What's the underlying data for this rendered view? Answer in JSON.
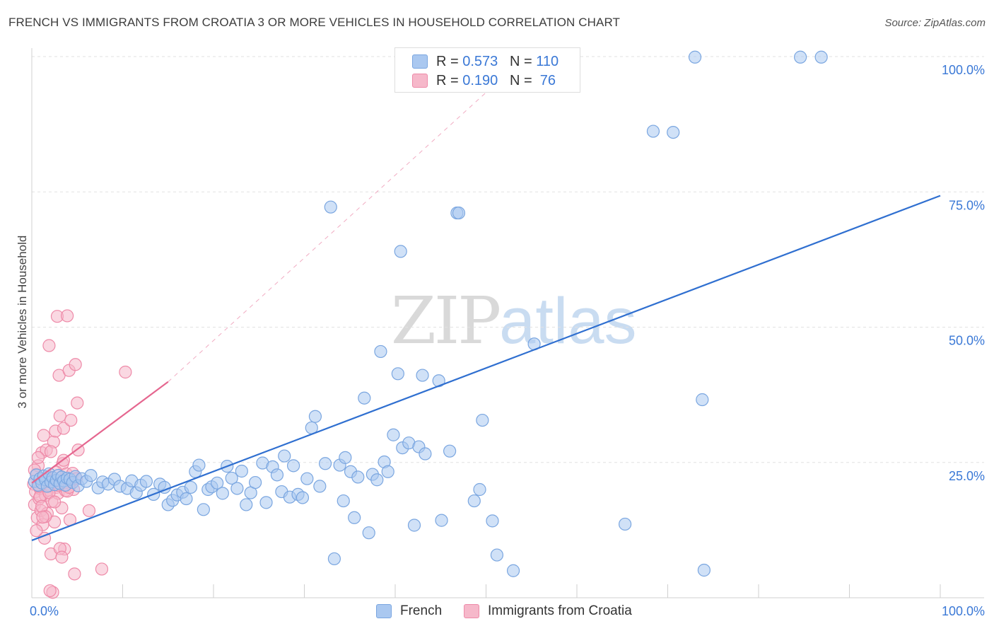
{
  "header": {
    "title": "FRENCH VS IMMIGRANTS FROM CROATIA 3 OR MORE VEHICLES IN HOUSEHOLD CORRELATION CHART",
    "source": "Source: ZipAtlas.com"
  },
  "watermark": {
    "zip": "ZIP",
    "atlas": "atlas"
  },
  "legend_top": {
    "rows": [
      {
        "r_label": "R = ",
        "r_value": "0.573",
        "n_label": "N = ",
        "n_value": "110",
        "color": "#aac8f0"
      },
      {
        "r_label": "R = ",
        "r_value": "0.190",
        "n_label": "N = ",
        "n_value": " 76",
        "color": "#f6b8ca"
      }
    ]
  },
  "legend_bottom": {
    "items": [
      {
        "label": "French",
        "color": "#aac8f0"
      },
      {
        "label": "Immigrants from Croatia",
        "color": "#f6b8ca"
      }
    ]
  },
  "chart_data": {
    "type": "scatter",
    "ylabel": "3 or more Vehicles in Household",
    "xlim": [
      0,
      100
    ],
    "ylim": [
      0,
      100
    ],
    "x_tick_labels": [
      {
        "value": 0,
        "label": "0.0%"
      },
      {
        "value": 100,
        "label": "100.0%"
      }
    ],
    "y_tick_labels": [
      {
        "value": 25,
        "label": "25.0%"
      },
      {
        "value": 50,
        "label": "50.0%"
      },
      {
        "value": 75,
        "label": "75.0%"
      },
      {
        "value": 100,
        "label": "100.0%"
      }
    ],
    "x_minor_ticks": [
      0,
      10,
      20,
      30,
      40,
      50,
      60,
      70,
      80,
      90,
      100
    ],
    "grid": {
      "horizontal": true,
      "vertical": false,
      "style": "dashed"
    },
    "legend_position": "top-center",
    "colors": {
      "french_fill": "#aac8f0",
      "french_stroke": "#7aa6e0",
      "french_line": "#2f6fd0",
      "croatia_fill": "#f6b8ca",
      "croatia_stroke": "#ee8aa8",
      "croatia_line": "#e5668f"
    },
    "series": [
      {
        "name": "French",
        "points": [
          [
            0.3,
            21.5
          ],
          [
            0.5,
            22.7
          ],
          [
            0.7,
            20.8
          ],
          [
            0.9,
            22.0
          ],
          [
            1.1,
            21.2
          ],
          [
            1.3,
            22.5
          ],
          [
            1.5,
            21.8
          ],
          [
            1.7,
            20.6
          ],
          [
            1.9,
            22.9
          ],
          [
            2.1,
            21.4
          ],
          [
            2.3,
            22.2
          ],
          [
            2.5,
            20.9
          ],
          [
            2.7,
            21.7
          ],
          [
            2.9,
            22.6
          ],
          [
            3.1,
            21.1
          ],
          [
            3.3,
            22.3
          ],
          [
            3.5,
            21.6
          ],
          [
            3.7,
            20.8
          ],
          [
            3.9,
            22.1
          ],
          [
            4.2,
            21.9
          ],
          [
            4.5,
            21.3
          ],
          [
            4.8,
            22.4
          ],
          [
            5.1,
            20.7
          ],
          [
            5.5,
            22.0
          ],
          [
            6.0,
            21.5
          ],
          [
            6.5,
            22.6
          ],
          [
            7.3,
            20.3
          ],
          [
            7.8,
            21.4
          ],
          [
            8.4,
            21.0
          ],
          [
            9.1,
            21.9
          ],
          [
            9.7,
            20.6
          ],
          [
            10.5,
            20.2
          ],
          [
            11.0,
            21.6
          ],
          [
            11.5,
            19.4
          ],
          [
            12.0,
            20.8
          ],
          [
            12.6,
            21.5
          ],
          [
            13.4,
            19.1
          ],
          [
            14.1,
            21.0
          ],
          [
            14.6,
            20.4
          ],
          [
            15.0,
            17.2
          ],
          [
            15.5,
            18.0
          ],
          [
            16.0,
            19.0
          ],
          [
            16.6,
            19.5
          ],
          [
            17.0,
            18.3
          ],
          [
            17.5,
            20.4
          ],
          [
            18.0,
            23.3
          ],
          [
            18.4,
            24.5
          ],
          [
            18.9,
            16.3
          ],
          [
            19.4,
            20.0
          ],
          [
            19.8,
            20.5
          ],
          [
            20.4,
            21.2
          ],
          [
            21.0,
            19.3
          ],
          [
            21.5,
            24.3
          ],
          [
            22.0,
            22.1
          ],
          [
            22.6,
            20.2
          ],
          [
            23.1,
            23.4
          ],
          [
            23.6,
            17.2
          ],
          [
            24.1,
            19.4
          ],
          [
            24.6,
            21.3
          ],
          [
            25.4,
            24.9
          ],
          [
            25.8,
            17.6
          ],
          [
            26.5,
            24.2
          ],
          [
            27.0,
            22.7
          ],
          [
            27.5,
            19.6
          ],
          [
            27.8,
            26.2
          ],
          [
            28.4,
            18.6
          ],
          [
            28.8,
            24.4
          ],
          [
            29.3,
            19.1
          ],
          [
            29.8,
            18.5
          ],
          [
            30.3,
            22.0
          ],
          [
            30.8,
            31.4
          ],
          [
            31.2,
            33.5
          ],
          [
            31.7,
            20.6
          ],
          [
            32.3,
            24.8
          ],
          [
            32.9,
            72.2
          ],
          [
            33.3,
            7.2
          ],
          [
            33.9,
            24.5
          ],
          [
            34.3,
            17.9
          ],
          [
            34.5,
            25.9
          ],
          [
            35.1,
            23.3
          ],
          [
            35.5,
            14.8
          ],
          [
            35.9,
            22.3
          ],
          [
            36.6,
            36.9
          ],
          [
            37.1,
            12.0
          ],
          [
            37.5,
            22.8
          ],
          [
            38.0,
            21.8
          ],
          [
            38.4,
            45.5
          ],
          [
            38.8,
            25.1
          ],
          [
            39.2,
            23.3
          ],
          [
            39.8,
            30.1
          ],
          [
            40.3,
            41.4
          ],
          [
            40.6,
            64.0
          ],
          [
            40.8,
            27.7
          ],
          [
            41.5,
            28.6
          ],
          [
            42.1,
            13.4
          ],
          [
            42.6,
            27.9
          ],
          [
            43.0,
            41.1
          ],
          [
            43.3,
            26.6
          ],
          [
            44.8,
            40.1
          ],
          [
            45.1,
            14.3
          ],
          [
            46.0,
            27.1
          ],
          [
            46.8,
            71.1
          ],
          [
            47.0,
            71.1
          ],
          [
            48.7,
            17.9
          ],
          [
            49.3,
            20.0
          ],
          [
            49.6,
            32.8
          ],
          [
            50.7,
            14.2
          ],
          [
            51.2,
            7.9
          ],
          [
            53.0,
            5.0
          ],
          [
            55.3,
            46.9
          ],
          [
            65.3,
            13.6
          ],
          [
            68.4,
            86.2
          ],
          [
            70.6,
            86.0
          ],
          [
            73.0,
            99.9
          ],
          [
            73.8,
            36.6
          ],
          [
            74.0,
            5.1
          ],
          [
            84.6,
            99.9
          ],
          [
            86.9,
            99.9
          ]
        ]
      },
      {
        "name": "Immigrants from Croatia",
        "points": [
          [
            0.2,
            21.0
          ],
          [
            0.3,
            17.2
          ],
          [
            0.4,
            19.6
          ],
          [
            0.5,
            22.8
          ],
          [
            0.6,
            14.8
          ],
          [
            0.7,
            24.4
          ],
          [
            0.8,
            18.3
          ],
          [
            0.9,
            20.2
          ],
          [
            1.0,
            16.1
          ],
          [
            1.1,
            26.8
          ],
          [
            1.2,
            13.5
          ],
          [
            1.3,
            21.7
          ],
          [
            1.4,
            11.0
          ],
          [
            1.5,
            18.9
          ],
          [
            1.6,
            27.3
          ],
          [
            1.7,
            15.6
          ],
          [
            1.8,
            19.9
          ],
          [
            1.9,
            46.6
          ],
          [
            2.0,
            20.7
          ],
          [
            2.1,
            8.1
          ],
          [
            2.2,
            17.8
          ],
          [
            2.3,
            22.2
          ],
          [
            2.4,
            28.8
          ],
          [
            2.5,
            14.0
          ],
          [
            2.6,
            30.8
          ],
          [
            2.7,
            20.4
          ],
          [
            2.8,
            52.0
          ],
          [
            2.9,
            19.3
          ],
          [
            3.0,
            41.1
          ],
          [
            3.1,
            33.6
          ],
          [
            3.2,
            21.6
          ],
          [
            3.3,
            16.6
          ],
          [
            3.4,
            24.8
          ],
          [
            3.5,
            31.3
          ],
          [
            3.6,
            9.0
          ],
          [
            3.7,
            19.8
          ],
          [
            3.8,
            22.9
          ],
          [
            3.9,
            52.1
          ],
          [
            4.0,
            21.2
          ],
          [
            4.1,
            42.0
          ],
          [
            4.2,
            14.4
          ],
          [
            4.3,
            32.8
          ],
          [
            4.4,
            21.6
          ],
          [
            4.5,
            23.0
          ],
          [
            4.6,
            20.0
          ],
          [
            4.7,
            4.4
          ],
          [
            4.8,
            43.1
          ],
          [
            4.9,
            22.0
          ],
          [
            5.0,
            36.0
          ],
          [
            5.1,
            27.3
          ],
          [
            0.3,
            23.6
          ],
          [
            0.5,
            12.4
          ],
          [
            0.7,
            25.9
          ],
          [
            0.9,
            18.7
          ],
          [
            1.1,
            16.9
          ],
          [
            1.3,
            30.0
          ],
          [
            1.5,
            15.0
          ],
          [
            1.7,
            22.3
          ],
          [
            1.9,
            19.4
          ],
          [
            2.1,
            27.0
          ],
          [
            2.3,
            1.0
          ],
          [
            2.5,
            17.7
          ],
          [
            2.7,
            23.2
          ],
          [
            2.9,
            20.8
          ],
          [
            3.1,
            9.1
          ],
          [
            3.3,
            7.5
          ],
          [
            3.5,
            25.4
          ],
          [
            3.7,
            21.3
          ],
          [
            3.9,
            19.7
          ],
          [
            4.1,
            20.4
          ],
          [
            6.3,
            16.1
          ],
          [
            7.7,
            5.3
          ],
          [
            10.3,
            41.7
          ],
          [
            2.0,
            1.3
          ],
          [
            1.2,
            14.9
          ],
          [
            0.8,
            20.6
          ]
        ]
      }
    ],
    "trend_lines": [
      {
        "series": "French",
        "from": [
          0,
          10.6
        ],
        "to": [
          100,
          74.3
        ],
        "style": "solid"
      },
      {
        "series": "Immigrants from Croatia",
        "from": [
          0,
          21.2
        ],
        "to": [
          15,
          39.9
        ],
        "style": "solid"
      },
      {
        "series": "Immigrants from Croatia",
        "from": [
          15,
          39.9
        ],
        "to": [
          55,
          101
        ],
        "style": "dashed"
      }
    ]
  }
}
